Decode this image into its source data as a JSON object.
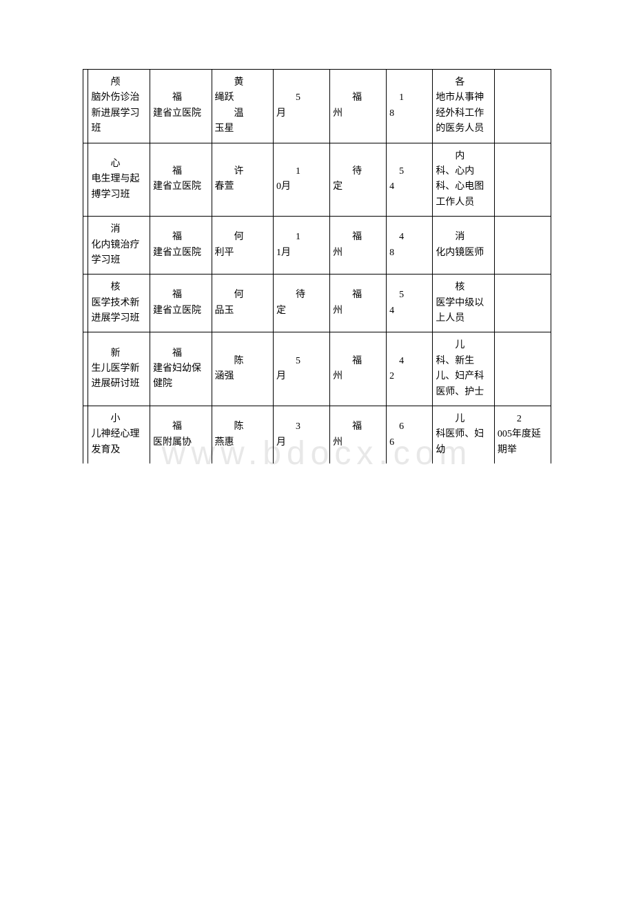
{
  "watermark": "www.bdocx.com",
  "table": {
    "columns": [
      {
        "key": "c1",
        "width_class": "col1"
      },
      {
        "key": "c2",
        "width_class": "col2"
      },
      {
        "key": "c3",
        "width_class": "col3"
      },
      {
        "key": "c4",
        "width_class": "col4"
      },
      {
        "key": "c5",
        "width_class": "col5"
      },
      {
        "key": "c6",
        "width_class": "col6"
      },
      {
        "key": "c7",
        "width_class": "col7"
      },
      {
        "key": "c8",
        "width_class": "col8"
      },
      {
        "key": "c9",
        "width_class": "col9"
      }
    ],
    "rows": [
      {
        "c1": "",
        "c2_indent": "颅",
        "c2_rest": "脑外伤诊治新进展学习班",
        "c3_indent": "福",
        "c3_rest": "建省立医院",
        "c4_indent": "黄",
        "c4_rest": "绳跃",
        "c4_indent2": "温",
        "c4_rest2": "玉星",
        "c5_indent": "5",
        "c5_rest": "月",
        "c6_indent": "福",
        "c6_rest": "州",
        "c7_indent": "1",
        "c7_rest": "8",
        "c8_indent": "各",
        "c8_rest": "地市从事神经外科工作的医务人员",
        "c9": ""
      },
      {
        "c1": "",
        "c2_indent": "心",
        "c2_rest": "电生理与起搏学习班",
        "c3_indent": "福",
        "c3_rest": "建省立医院",
        "c4_indent": "许",
        "c4_rest": "春萱",
        "c5_indent": "1",
        "c5_rest": "0月",
        "c6_indent": "待",
        "c6_rest": "定",
        "c7_indent": "5",
        "c7_rest": "4",
        "c8_indent": "内",
        "c8_rest": "科、心内科、心电图工作人员",
        "c9": ""
      },
      {
        "c1": "",
        "c2_indent": "消",
        "c2_rest": "化内镜治疗学习班",
        "c3_indent": "福",
        "c3_rest": "建省立医院",
        "c4_indent": "何",
        "c4_rest": "利平",
        "c5_indent": "1",
        "c5_rest": "1月",
        "c6_indent": "福",
        "c6_rest": "州",
        "c7_indent": "4",
        "c7_rest": "8",
        "c8_indent": "消",
        "c8_rest": "化内镜医师",
        "c9": ""
      },
      {
        "c1": "",
        "c2_indent": "核",
        "c2_rest": "医学技术新进展学习班",
        "c3_indent": "福",
        "c3_rest": "建省立医院",
        "c4_indent": "何",
        "c4_rest": "品玉",
        "c5_indent": "待",
        "c5_rest": "定",
        "c6_indent": "福",
        "c6_rest": "州",
        "c7_indent": "5",
        "c7_rest": "4",
        "c8_indent": "核",
        "c8_rest": "医学中级以上人员",
        "c9": ""
      },
      {
        "c1": "",
        "c2_indent": "新",
        "c2_rest": "生儿医学新进展研讨班",
        "c3_indent": "福",
        "c3_rest": "建省妇幼保健院",
        "c4_indent": "陈",
        "c4_rest": "涵强",
        "c5_indent": "5",
        "c5_rest": "月",
        "c6_indent": "福",
        "c6_rest": "州",
        "c7_indent": "4",
        "c7_rest": "2",
        "c8_indent": "儿",
        "c8_rest": "科、新生儿、妇产科医师、护士",
        "c9": ""
      },
      {
        "c1": "",
        "c2_indent": "小",
        "c2_rest": "儿神经心理发育及",
        "c3_indent": "福",
        "c3_rest": "医附属协",
        "c4_indent": "陈",
        "c4_rest": "燕惠",
        "c5_indent": "3",
        "c5_rest": "月",
        "c6_indent": "福",
        "c6_rest": "州",
        "c7_indent": "6",
        "c7_rest": "6",
        "c8_indent": "儿",
        "c8_rest": "科医师、妇幼",
        "c9_indent": "2",
        "c9_rest": "005年度延期举"
      }
    ]
  },
  "styling": {
    "background_color": "#ffffff",
    "border_color": "#000000",
    "font_size": 14,
    "line_height": 1.6,
    "watermark_color": "#e8e8e8",
    "watermark_fontsize": 48
  }
}
